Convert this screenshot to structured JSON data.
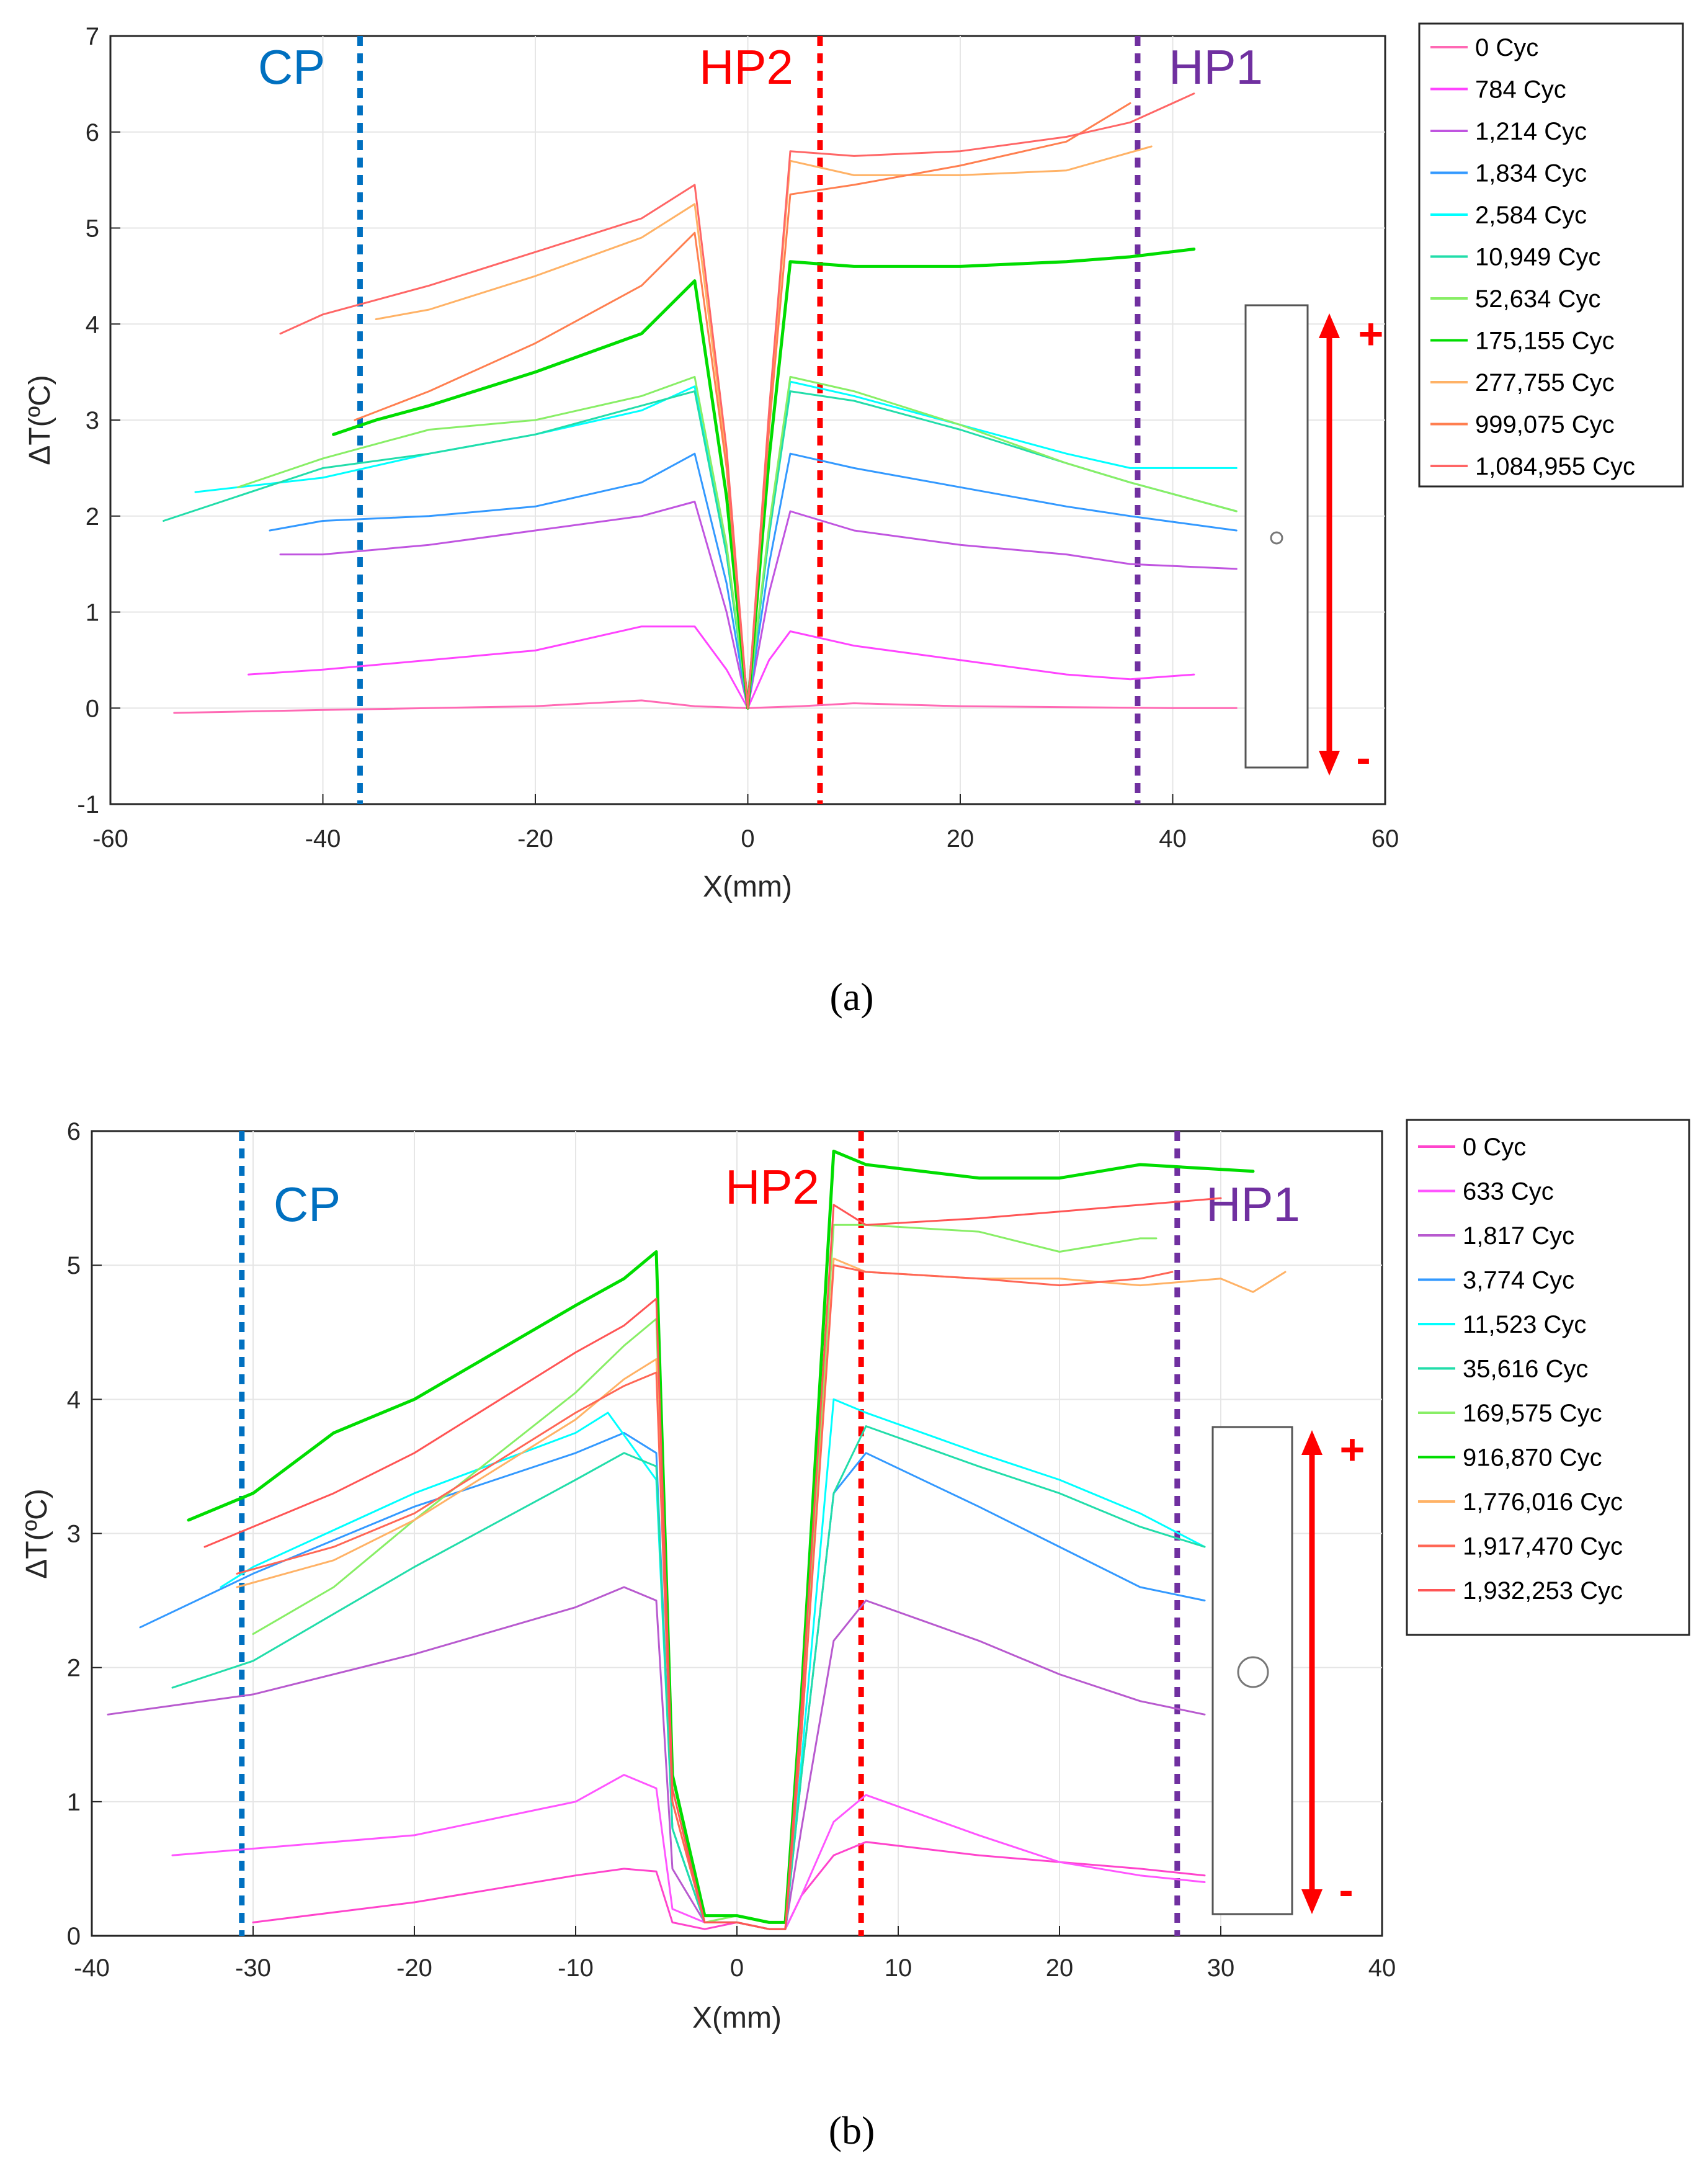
{
  "chart_data": [
    {
      "type": "line",
      "panel": "a",
      "caption": "(a)",
      "xlabel": "X(mm)",
      "ylabel": "ΔT(ºC)",
      "xlim": [
        -60,
        60
      ],
      "ylim": [
        -1,
        7
      ],
      "xticks": [
        -60,
        -40,
        -20,
        0,
        20,
        40,
        60
      ],
      "yticks": [
        -1,
        0,
        1,
        2,
        3,
        4,
        5,
        6,
        7
      ],
      "grid": true,
      "legend_position": "outside-right",
      "ref_lines": [
        {
          "label": "CP",
          "x": -36.5,
          "color": "#0070C0"
        },
        {
          "label": "HP2",
          "x": 6.8,
          "color": "#FF0000"
        },
        {
          "label": "HP1",
          "x": 36.7,
          "color": "#7030A0"
        }
      ],
      "specimen": {
        "sign_plus": "+",
        "sign_minus": "-"
      },
      "series": [
        {
          "name": "0 Cyc",
          "color": "#FF69B4",
          "x": [
            -54,
            -40,
            -20,
            -10,
            -5,
            0,
            5,
            10,
            20,
            30,
            40,
            46
          ],
          "y": [
            -0.05,
            -0.02,
            0.02,
            0.08,
            0.02,
            0.0,
            0.02,
            0.05,
            0.02,
            0.01,
            0.0,
            0.0
          ]
        },
        {
          "name": "784 Cyc",
          "color": "#FF44FF",
          "x": [
            -47,
            -40,
            -30,
            -20,
            -10,
            -5,
            -2,
            0,
            2,
            4,
            10,
            20,
            30,
            36,
            42
          ],
          "y": [
            0.35,
            0.4,
            0.5,
            0.6,
            0.85,
            0.85,
            0.4,
            0.0,
            0.5,
            0.8,
            0.65,
            0.5,
            0.35,
            0.3,
            0.35
          ]
        },
        {
          "name": "1,214 Cyc",
          "color": "#C055E0",
          "x": [
            -44,
            -40,
            -30,
            -20,
            -10,
            -5,
            -2,
            0,
            2,
            4,
            10,
            20,
            30,
            36,
            46
          ],
          "y": [
            1.6,
            1.6,
            1.7,
            1.85,
            2.0,
            2.15,
            1.0,
            0.0,
            1.2,
            2.05,
            1.85,
            1.7,
            1.6,
            1.5,
            1.45
          ]
        },
        {
          "name": "1,834 Cyc",
          "color": "#3399FF",
          "x": [
            -45,
            -40,
            -30,
            -20,
            -10,
            -5,
            -2,
            0,
            2,
            4,
            10,
            20,
            30,
            36,
            46
          ],
          "y": [
            1.85,
            1.95,
            2.0,
            2.1,
            2.35,
            2.65,
            1.3,
            0.0,
            1.5,
            2.65,
            2.5,
            2.3,
            2.1,
            2.0,
            1.85
          ]
        },
        {
          "name": "2,584 Cyc",
          "color": "#00FFFF",
          "x": [
            -52,
            -40,
            -30,
            -20,
            -10,
            -5,
            -2,
            0,
            2,
            4,
            10,
            20,
            30,
            36,
            46
          ],
          "y": [
            2.25,
            2.4,
            2.65,
            2.85,
            3.1,
            3.35,
            1.6,
            0.0,
            1.8,
            3.4,
            3.25,
            2.95,
            2.65,
            2.5,
            2.5
          ]
        },
        {
          "name": "10,949 Cyc",
          "color": "#22DDAA",
          "x": [
            -55,
            -40,
            -30,
            -20,
            -10,
            -5,
            -2,
            0,
            2,
            4,
            10,
            20,
            30,
            36,
            46
          ],
          "y": [
            1.95,
            2.5,
            2.65,
            2.85,
            3.15,
            3.3,
            1.6,
            0.0,
            1.8,
            3.3,
            3.2,
            2.9,
            2.55,
            2.35,
            2.05
          ]
        },
        {
          "name": "52,634 Cyc",
          "color": "#88EE66",
          "x": [
            -48,
            -40,
            -30,
            -20,
            -10,
            -5,
            -2,
            0,
            2,
            4,
            10,
            20,
            30,
            36,
            46
          ],
          "y": [
            2.3,
            2.6,
            2.9,
            3.0,
            3.25,
            3.45,
            1.7,
            0.0,
            1.9,
            3.45,
            3.3,
            2.95,
            2.55,
            2.35,
            2.05
          ]
        },
        {
          "name": "175,155 Cyc",
          "color": "#00DD00",
          "x": [
            -39,
            -35,
            -30,
            -20,
            -10,
            -5,
            -2,
            0,
            2,
            4,
            10,
            20,
            30,
            36,
            42
          ],
          "y": [
            2.85,
            3.0,
            3.15,
            3.5,
            3.9,
            4.45,
            2.2,
            0.0,
            2.6,
            4.65,
            4.6,
            4.6,
            4.65,
            4.7,
            4.78
          ]
        },
        {
          "name": "277,755 Cyc",
          "color": "#FFB266",
          "x": [
            -35,
            -30,
            -20,
            -10,
            -5,
            -2,
            0,
            2,
            4,
            10,
            20,
            30,
            38
          ],
          "y": [
            4.05,
            4.15,
            4.5,
            4.9,
            5.25,
            2.6,
            0.0,
            3.0,
            5.7,
            5.55,
            5.55,
            5.6,
            5.85
          ]
        },
        {
          "name": "999,075 Cyc",
          "color": "#FF7F50",
          "x": [
            -37,
            -30,
            -20,
            -10,
            -5,
            -2,
            0,
            2,
            4,
            10,
            20,
            30,
            36
          ],
          "y": [
            3.0,
            3.3,
            3.8,
            4.4,
            4.95,
            2.5,
            0.0,
            2.9,
            5.35,
            5.45,
            5.65,
            5.9,
            6.3
          ]
        },
        {
          "name": "1,084,955 Cyc",
          "color": "#FF6666",
          "x": [
            -44,
            -40,
            -30,
            -20,
            -10,
            -5,
            -2,
            0,
            2,
            4,
            10,
            20,
            30,
            36,
            42
          ],
          "y": [
            3.9,
            4.1,
            4.4,
            4.75,
            5.1,
            5.45,
            2.7,
            0.0,
            3.1,
            5.8,
            5.75,
            5.8,
            5.95,
            6.1,
            6.4
          ]
        }
      ]
    },
    {
      "type": "line",
      "panel": "b",
      "caption": "(b)",
      "xlabel": "X(mm)",
      "ylabel": "ΔT(ºC)",
      "xlim": [
        -40,
        40
      ],
      "ylim": [
        0,
        6
      ],
      "xticks": [
        -40,
        -30,
        -20,
        -10,
        0,
        10,
        20,
        30,
        40
      ],
      "yticks": [
        0,
        1,
        2,
        3,
        4,
        5,
        6
      ],
      "grid": true,
      "legend_position": "outside-right",
      "ref_lines": [
        {
          "label": "CP",
          "x": -30.7,
          "color": "#0070C0"
        },
        {
          "label": "HP2",
          "x": 7.7,
          "color": "#FF0000"
        },
        {
          "label": "HP1",
          "x": 27.3,
          "color": "#7030A0"
        }
      ],
      "specimen": {
        "sign_plus": "+",
        "sign_minus": "-"
      },
      "series": [
        {
          "name": "0 Cyc",
          "color": "#FF44CC",
          "x": [
            -30,
            -20,
            -10,
            -7,
            -5,
            -4,
            -2,
            0,
            2,
            3,
            4,
            6,
            8,
            15,
            20,
            25,
            29
          ],
          "y": [
            0.1,
            0.25,
            0.45,
            0.5,
            0.48,
            0.1,
            0.05,
            0.1,
            0.05,
            0.05,
            0.3,
            0.6,
            0.7,
            0.6,
            0.55,
            0.5,
            0.45
          ]
        },
        {
          "name": "633 Cyc",
          "color": "#FF55FF",
          "x": [
            -35,
            -30,
            -20,
            -10,
            -7,
            -5,
            -4,
            -2,
            0,
            2,
            3,
            4,
            6,
            8,
            15,
            20,
            25,
            29
          ],
          "y": [
            0.6,
            0.65,
            0.75,
            1.0,
            1.2,
            1.1,
            0.2,
            0.1,
            0.1,
            0.05,
            0.05,
            0.3,
            0.85,
            1.05,
            0.75,
            0.55,
            0.45,
            0.4
          ]
        },
        {
          "name": "1,817 Cyc",
          "color": "#B85ACF",
          "x": [
            -39,
            -30,
            -20,
            -10,
            -7,
            -5,
            -4,
            -2,
            0,
            2,
            3,
            4,
            6,
            8,
            15,
            20,
            25,
            29
          ],
          "y": [
            1.65,
            1.8,
            2.1,
            2.45,
            2.6,
            2.5,
            0.5,
            0.1,
            0.1,
            0.05,
            0.05,
            0.8,
            2.2,
            2.5,
            2.2,
            1.95,
            1.75,
            1.65
          ]
        },
        {
          "name": "3,774 Cyc",
          "color": "#3399FF",
          "x": [
            -37,
            -30,
            -20,
            -10,
            -7,
            -5,
            -4,
            -2,
            0,
            2,
            3,
            4,
            6,
            8,
            15,
            20,
            25,
            29
          ],
          "y": [
            2.3,
            2.7,
            3.2,
            3.6,
            3.75,
            3.6,
            0.8,
            0.1,
            0.1,
            0.05,
            0.05,
            1.2,
            3.3,
            3.6,
            3.2,
            2.9,
            2.6,
            2.5
          ]
        },
        {
          "name": "11,523 Cyc",
          "color": "#00FFFF",
          "x": [
            -32,
            -30,
            -20,
            -10,
            -8,
            -5,
            -4,
            -2,
            0,
            2,
            3,
            4,
            6,
            8,
            15,
            20,
            25,
            29
          ],
          "y": [
            2.6,
            2.75,
            3.3,
            3.75,
            3.9,
            3.4,
            0.8,
            0.1,
            0.1,
            0.05,
            0.05,
            1.3,
            4.0,
            3.9,
            3.6,
            3.4,
            3.15,
            2.9
          ]
        },
        {
          "name": "35,616 Cyc",
          "color": "#22DDAA",
          "x": [
            -35,
            -30,
            -20,
            -10,
            -7,
            -5,
            -4,
            -2,
            0,
            2,
            3,
            4,
            6,
            8,
            15,
            20,
            25,
            29
          ],
          "y": [
            1.85,
            2.05,
            2.75,
            3.4,
            3.6,
            3.5,
            0.8,
            0.1,
            0.1,
            0.05,
            0.05,
            1.2,
            3.3,
            3.8,
            3.5,
            3.3,
            3.05,
            2.9
          ]
        },
        {
          "name": "169,575 Cyc",
          "color": "#88EE66",
          "x": [
            -30,
            -25,
            -20,
            -10,
            -7,
            -5,
            -4,
            -2,
            0,
            2,
            3,
            4,
            6,
            8,
            15,
            20,
            25,
            26
          ],
          "y": [
            2.25,
            2.6,
            3.1,
            4.05,
            4.4,
            4.6,
            1.0,
            0.1,
            0.15,
            0.1,
            0.1,
            1.5,
            5.3,
            5.3,
            5.25,
            5.1,
            5.2,
            5.2
          ]
        },
        {
          "name": "916,870 Cyc",
          "color": "#00DD00",
          "x": [
            -34,
            -30,
            -25,
            -20,
            -10,
            -7,
            -5,
            -4,
            -2,
            0,
            2,
            3,
            4,
            6,
            8,
            15,
            20,
            25,
            32
          ],
          "y": [
            3.1,
            3.3,
            3.75,
            4.0,
            4.7,
            4.9,
            5.1,
            1.2,
            0.15,
            0.15,
            0.1,
            0.1,
            1.8,
            5.85,
            5.75,
            5.65,
            5.65,
            5.75,
            5.7
          ]
        },
        {
          "name": "1,776,016 Cyc",
          "color": "#FFB266",
          "x": [
            -31,
            -25,
            -20,
            -10,
            -7,
            -5,
            -4,
            -2,
            0,
            2,
            3,
            4,
            6,
            8,
            15,
            20,
            25,
            30,
            32,
            34
          ],
          "y": [
            2.6,
            2.8,
            3.1,
            3.85,
            4.15,
            4.3,
            1.0,
            0.1,
            0.1,
            0.05,
            0.05,
            1.5,
            5.05,
            4.95,
            4.9,
            4.9,
            4.85,
            4.9,
            4.8,
            4.95
          ]
        },
        {
          "name": "1,917,470 Cyc",
          "color": "#FF6655",
          "x": [
            -31,
            -25,
            -20,
            -10,
            -7,
            -5,
            -4,
            -2,
            0,
            2,
            3,
            4,
            6,
            8,
            15,
            20,
            25,
            27
          ],
          "y": [
            2.7,
            2.9,
            3.15,
            3.9,
            4.1,
            4.2,
            1.0,
            0.1,
            0.1,
            0.05,
            0.05,
            1.5,
            5.0,
            4.95,
            4.9,
            4.85,
            4.9,
            4.95
          ]
        },
        {
          "name": "1,932,253 Cyc",
          "color": "#FF5555",
          "x": [
            -33,
            -30,
            -25,
            -20,
            -10,
            -7,
            -5,
            -4,
            -2,
            0,
            2,
            3,
            4,
            6,
            8,
            15,
            20,
            25,
            30
          ],
          "y": [
            2.9,
            3.05,
            3.3,
            3.6,
            4.35,
            4.55,
            4.75,
            1.1,
            0.1,
            0.1,
            0.05,
            0.05,
            1.7,
            5.45,
            5.3,
            5.35,
            5.4,
            5.45,
            5.5
          ]
        }
      ]
    }
  ]
}
